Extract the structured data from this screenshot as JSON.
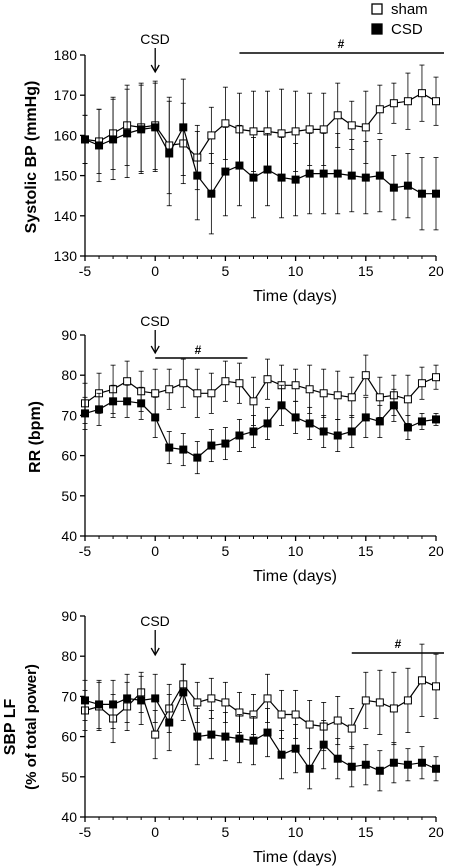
{
  "legend": {
    "position": "top-right",
    "items": [
      {
        "label": "sham",
        "marker": "open-square"
      },
      {
        "label": "CSD",
        "marker": "filled-square"
      }
    ]
  },
  "chart_data": [
    {
      "type": "line",
      "xlabel": "Time (days)",
      "ylabel": "Systolic BP (mmHg)",
      "xlim": [
        -5,
        20
      ],
      "ylim": [
        130,
        180
      ],
      "xticks": [
        -5,
        0,
        5,
        10,
        15,
        20
      ],
      "xtick_labels": [
        "-5",
        "0",
        "5",
        "10",
        "15",
        "20"
      ],
      "yticks": [
        130,
        140,
        150,
        160,
        170,
        180
      ],
      "ytick_labels": [
        "130",
        "140",
        "150",
        "160",
        "170",
        "180"
      ],
      "grid": false,
      "annotations": [
        {
          "text": "CSD",
          "type": "arrow",
          "x": 0
        },
        {
          "text": "#",
          "type": "significance-bar",
          "x_start": 6,
          "x_end": 20
        }
      ],
      "x": [
        -5,
        -4,
        -3,
        -2,
        -1,
        0,
        1,
        2,
        3,
        4,
        5,
        6,
        7,
        8,
        9,
        10,
        11,
        12,
        13,
        14,
        15,
        16,
        17,
        18,
        19,
        20
      ],
      "series": [
        {
          "name": "sham",
          "marker": "open-square",
          "values": [
            159,
            158.5,
            160.5,
            162.5,
            162,
            162.5,
            157.5,
            158,
            154.5,
            160,
            163,
            161.5,
            161,
            161,
            160.5,
            161,
            161.5,
            161.5,
            165,
            162.5,
            162,
            166.5,
            168,
            168.5,
            170.5,
            168.5
          ],
          "errors": [
            6,
            8,
            9,
            10,
            11,
            11,
            12,
            10,
            8,
            7,
            9,
            9,
            10,
            10,
            11,
            10,
            9,
            9,
            8,
            6,
            9,
            6,
            5,
            7,
            7,
            6
          ]
        },
        {
          "name": "CSD",
          "marker": "filled-square",
          "values": [
            159,
            157.5,
            159,
            160.5,
            161.5,
            162,
            155.5,
            162,
            150,
            145.5,
            151,
            152.5,
            149.5,
            151.5,
            149.5,
            149,
            150.5,
            150.5,
            150.5,
            150,
            149.5,
            150,
            147,
            147.5,
            145.5,
            145.5
          ],
          "errors": [
            6,
            9,
            10,
            11,
            11,
            11,
            13,
            12,
            11,
            10,
            11,
            10,
            10,
            9,
            10,
            9,
            10,
            10,
            10,
            9,
            9,
            9,
            8,
            8,
            9,
            9
          ]
        }
      ]
    },
    {
      "type": "line",
      "xlabel": "Time (days)",
      "ylabel": "RR (bpm)",
      "xlim": [
        -5,
        20
      ],
      "ylim": [
        40,
        90
      ],
      "xticks": [
        -5,
        0,
        5,
        10,
        15,
        20
      ],
      "xtick_labels": [
        "-5",
        "0",
        "5",
        "10",
        "15",
        "20"
      ],
      "yticks": [
        40,
        50,
        60,
        70,
        80,
        90
      ],
      "ytick_labels": [
        "40",
        "50",
        "60",
        "70",
        "80",
        "90"
      ],
      "grid": false,
      "annotations": [
        {
          "text": "CSD",
          "type": "arrow",
          "x": 0
        },
        {
          "text": "#",
          "type": "significance-bar",
          "x_start": 0,
          "x_end": 6
        }
      ],
      "x": [
        -5,
        -4,
        -3,
        -2,
        -1,
        0,
        1,
        2,
        3,
        4,
        5,
        6,
        7,
        8,
        9,
        10,
        11,
        12,
        13,
        14,
        15,
        16,
        17,
        18,
        19,
        20
      ],
      "series": [
        {
          "name": "sham",
          "marker": "open-square",
          "values": [
            73,
            75.5,
            76.5,
            78.5,
            76,
            75.5,
            76.5,
            78,
            75.5,
            75.5,
            78.5,
            78,
            73.5,
            79,
            77.5,
            77.5,
            76.5,
            75.5,
            75,
            74.5,
            80,
            74.5,
            75,
            74,
            78,
            79.5
          ],
          "errors": [
            5,
            5,
            6,
            5,
            5,
            6,
            5,
            6,
            6,
            5,
            5,
            5,
            6,
            5,
            5,
            4,
            6,
            6,
            6,
            5,
            5,
            5,
            5,
            6,
            4,
            3
          ]
        },
        {
          "name": "CSD",
          "marker": "filled-square",
          "values": [
            70.5,
            71.5,
            73.5,
            73.5,
            73,
            69.5,
            62,
            61.5,
            59.5,
            62.5,
            63,
            65,
            66,
            68,
            72.5,
            69.5,
            68,
            66,
            65,
            66,
            69.5,
            68.5,
            72.5,
            67,
            68.5,
            69
          ],
          "errors": [
            4,
            4,
            4,
            4,
            4,
            5,
            4,
            4,
            4,
            4,
            4,
            4,
            4,
            4,
            5,
            4,
            4,
            4,
            4,
            4,
            5,
            4,
            4,
            3,
            2,
            1.5
          ]
        }
      ]
    },
    {
      "type": "line",
      "xlabel": "Time (days)",
      "ylabel": "SBP LF",
      "ylabel2": "(% of total power)",
      "xlim": [
        -5,
        20
      ],
      "ylim": [
        40,
        90
      ],
      "xticks": [
        -5,
        0,
        5,
        10,
        15,
        20
      ],
      "xtick_labels": [
        "-5",
        "0",
        "5",
        "10",
        "15",
        "20"
      ],
      "yticks": [
        40,
        50,
        60,
        70,
        80,
        90
      ],
      "ytick_labels": [
        "40",
        "50",
        "60",
        "70",
        "80",
        "90"
      ],
      "grid": false,
      "annotations": [
        {
          "text": "CSD",
          "type": "arrow",
          "x": 0
        },
        {
          "text": "#",
          "type": "significance-bar",
          "x_start": 14,
          "x_end": 20
        }
      ],
      "x": [
        -5,
        -4,
        -3,
        -2,
        -1,
        0,
        1,
        2,
        3,
        4,
        5,
        6,
        7,
        8,
        9,
        10,
        11,
        12,
        13,
        14,
        15,
        16,
        17,
        18,
        19,
        20
      ],
      "series": [
        {
          "name": "sham",
          "marker": "open-square",
          "values": [
            66.5,
            67.5,
            64.5,
            67.5,
            71,
            60.5,
            67,
            73,
            68.5,
            69.5,
            68.5,
            66,
            65.5,
            69.5,
            65.5,
            65.5,
            63,
            62.5,
            64,
            62,
            69,
            68.5,
            67,
            69,
            74,
            72.5
          ],
          "errors": [
            5,
            6,
            6,
            6,
            5,
            6,
            6,
            5,
            5,
            5,
            5,
            5,
            5,
            6,
            6,
            6,
            6,
            6,
            6,
            5,
            7,
            8,
            9,
            8,
            9,
            8
          ]
        },
        {
          "name": "CSD",
          "marker": "filled-square",
          "values": [
            69,
            68,
            68,
            69.5,
            69,
            69.5,
            63.5,
            71,
            60,
            60.5,
            60,
            59.5,
            59,
            61,
            55.5,
            57,
            52,
            58,
            54.5,
            52.5,
            53,
            51.5,
            53.5,
            53,
            53.5,
            52
          ],
          "errors": [
            5,
            6,
            6,
            6,
            6,
            6,
            7,
            7,
            7,
            6,
            6,
            6,
            6,
            6,
            6,
            6,
            5,
            6,
            5,
            5,
            5,
            5,
            5,
            4,
            4,
            3
          ]
        }
      ]
    }
  ]
}
